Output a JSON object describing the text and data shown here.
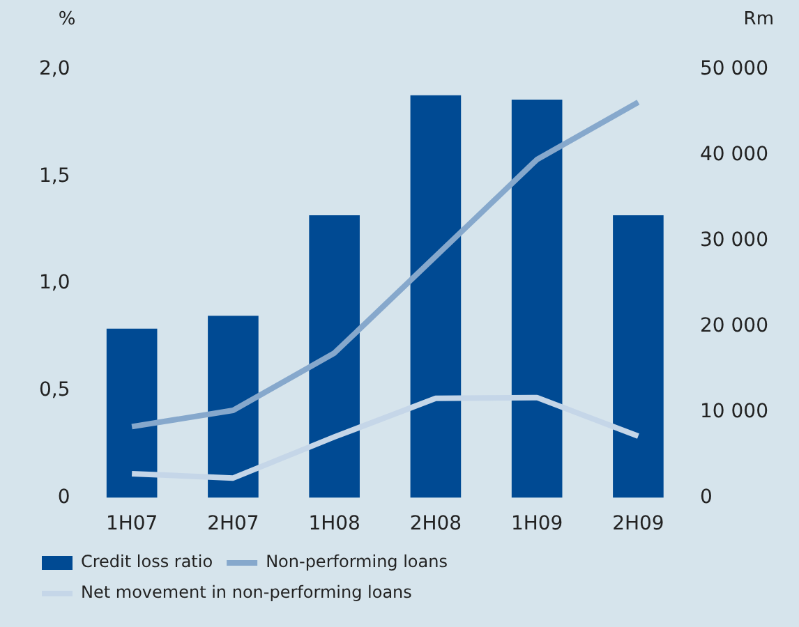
{
  "chart_data": {
    "type": "bar",
    "categories": [
      "1H07",
      "2H07",
      "1H08",
      "2H08",
      "1H09",
      "2H09"
    ],
    "ylabel": "%",
    "y2label": "Rm",
    "series": [
      {
        "name": "Credit loss ratio",
        "color": "#004a93",
        "values": [
          0.79,
          0.85,
          1.32,
          1.88,
          1.86,
          1.32
        ]
      },
      {
        "name": "Non-performing loans",
        "type": "line",
        "axis": "y2",
        "color": "#86a8cc",
        "values": [
          8300,
          10200,
          16900,
          28200,
          39500,
          46200
        ]
      },
      {
        "name": "Net movement in non-performing loans",
        "type": "line",
        "axis": "y2",
        "color": "#c5d6e8",
        "values": [
          2800,
          2300,
          7100,
          11600,
          11700,
          7200
        ]
      }
    ],
    "ylim": [
      0,
      2
    ],
    "yticks": [
      {
        "value": 0,
        "label": "0"
      },
      {
        "value": 0.5,
        "label": "0,5"
      },
      {
        "value": 1,
        "label": "1,0"
      },
      {
        "value": 1.5,
        "label": "1,5"
      },
      {
        "value": 2,
        "label": "2,0"
      }
    ],
    "y2lim": [
      0,
      50000
    ],
    "y2ticks": [
      {
        "value": 0,
        "label": "0"
      },
      {
        "value": 10000,
        "label": "10 000"
      },
      {
        "value": 20000,
        "label": "20 000"
      },
      {
        "value": 30000,
        "label": "30 000"
      },
      {
        "value": 40000,
        "label": "40 000"
      },
      {
        "value": 50000,
        "label": "50 000"
      }
    ],
    "grid": false,
    "legend": "bottom",
    "marker": "none"
  }
}
